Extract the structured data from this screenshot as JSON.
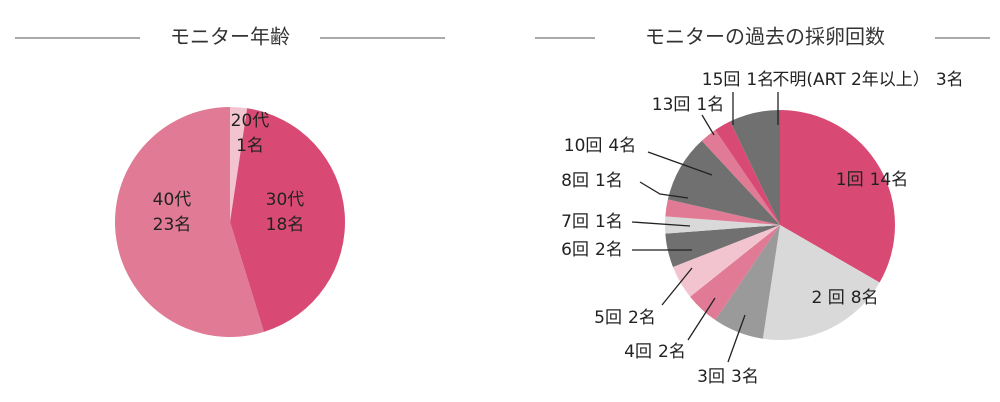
{
  "chart_data": [
    {
      "type": "pie",
      "title": "モニター年齢",
      "categories": [
        "20代",
        "30代",
        "40代"
      ],
      "values": [
        1,
        18,
        23
      ],
      "value_labels": [
        "1名",
        "18名",
        "23名"
      ],
      "colors": [
        "#f2c4cf",
        "#d84a74",
        "#e07a95"
      ]
    },
    {
      "type": "pie",
      "title": "モニターの過去の採卵回数",
      "categories": [
        "1回",
        "2 回",
        "3回",
        "4回",
        "5回",
        "6回",
        "7回",
        "8回",
        "10回",
        "13回",
        "15回",
        "不明(ART 2年以上）"
      ],
      "values": [
        14,
        8,
        3,
        2,
        2,
        2,
        1,
        1,
        4,
        1,
        1,
        3
      ],
      "value_labels": [
        "14名",
        "8名",
        "3名",
        "2名",
        "2名",
        "2名",
        "1名",
        "1名",
        "4名",
        "1名",
        "1名",
        "3名"
      ],
      "colors": [
        "#d84a74",
        "#d9d9d9",
        "#9a9a9a",
        "#e07a95",
        "#f2c4cf",
        "#707070",
        "#d9d9d9",
        "#e07a95",
        "#707070",
        "#e07a95",
        "#d84a74",
        "#707070"
      ]
    }
  ]
}
